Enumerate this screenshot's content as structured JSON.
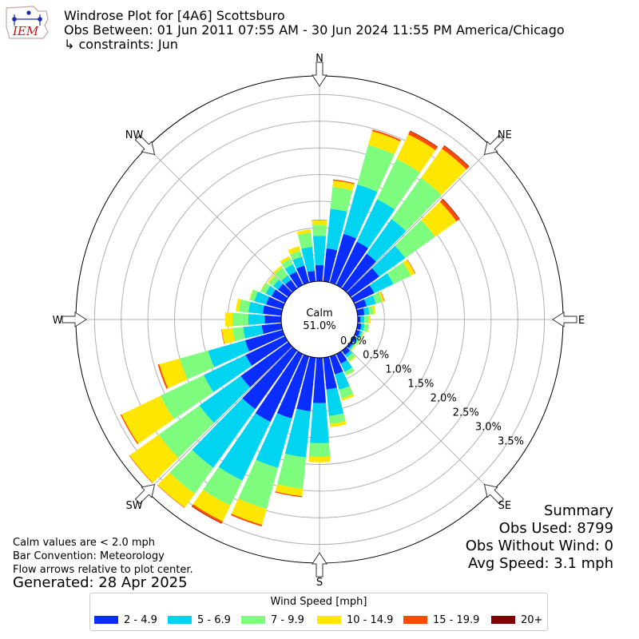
{
  "header": {
    "title": "Windrose Plot for [4A6] Scottsburo",
    "subtitle": "Obs Between: 01 Jun 2011 07:55 AM - 30 Jun 2024 11:55 PM America/Chicago",
    "constraints": "↳ constraints: Jun",
    "logo_text": "IEM"
  },
  "notes": {
    "calm_def": "Calm values are < 2.0 mph",
    "bar_convention": "Bar Convention: Meteorology",
    "flow_arrows": "Flow arrows relative to plot center.",
    "generated": "Generated: 28 Apr 2025"
  },
  "summary": {
    "title": "Summary",
    "obs_used": "Obs Used: 8799",
    "obs_without_wind": "Obs Without Wind: 0",
    "avg_speed": "Avg Speed: 3.1 mph"
  },
  "legend": {
    "title": "Wind Speed [mph]",
    "items": [
      {
        "label": "2 - 4.9",
        "color": "#0a2dff"
      },
      {
        "label": "5 - 6.9",
        "color": "#00d4f0"
      },
      {
        "label": "7 - 9.9",
        "color": "#7dfc7d"
      },
      {
        "label": "10 - 14.9",
        "color": "#ffe600"
      },
      {
        "label": "15 - 19.9",
        "color": "#ff4a00"
      },
      {
        "label": "20+",
        "color": "#800000"
      }
    ]
  },
  "chart_data": {
    "type": "windrose",
    "calm_label": "Calm",
    "calm_value": "51.0%",
    "direction_labels": [
      "N",
      "NE",
      "E",
      "SE",
      "S",
      "SW",
      "W",
      "NW"
    ],
    "radial_ticks": [
      0.0,
      0.5,
      1.0,
      1.5,
      2.0,
      2.5,
      3.0,
      3.5
    ],
    "radial_tick_labels": [
      "0.0%",
      "0.5%",
      "1.0%",
      "1.5%",
      "2.0%",
      "2.5%",
      "3.0%",
      "3.5%"
    ],
    "rmax_pct": 3.85,
    "bin_width_deg": 10,
    "speed_bins": [
      "2 - 4.9",
      "5 - 6.9",
      "7 - 9.9",
      "10 - 14.9",
      "15 - 19.9",
      "20+"
    ],
    "directions_deg": [
      0,
      10,
      20,
      30,
      40,
      50,
      60,
      70,
      80,
      90,
      100,
      110,
      120,
      130,
      140,
      150,
      160,
      170,
      180,
      190,
      200,
      210,
      220,
      230,
      240,
      250,
      260,
      270,
      280,
      290,
      300,
      310,
      320,
      330,
      340,
      350
    ],
    "cumulative_pct": [
      [
        0.3,
        0.85,
        1.05,
        1.14,
        1.15,
        1.15
      ],
      [
        0.62,
        1.37,
        1.78,
        1.9,
        1.92,
        1.92
      ],
      [
        0.95,
        1.91,
        2.68,
        2.95,
        2.98,
        2.98
      ],
      [
        0.9,
        1.78,
        2.62,
        3.13,
        3.2,
        3.21
      ],
      [
        0.8,
        1.6,
        2.55,
        3.22,
        3.29,
        3.3
      ],
      [
        0.66,
        1.26,
        1.95,
        2.44,
        2.51,
        2.52
      ],
      [
        0.42,
        0.82,
        1.18,
        1.27,
        1.28,
        1.28
      ],
      [
        0.2,
        0.38,
        0.5,
        0.54,
        0.55,
        0.55
      ],
      [
        0.13,
        0.22,
        0.3,
        0.34,
        0.34,
        0.34
      ],
      [
        0.05,
        0.12,
        0.2,
        0.24,
        0.24,
        0.24
      ],
      [
        0.07,
        0.13,
        0.21,
        0.22,
        0.22,
        0.22
      ],
      [
        0.07,
        0.11,
        0.14,
        0.15,
        0.15,
        0.15
      ],
      [
        0.05,
        0.09,
        0.13,
        0.14,
        0.14,
        0.14
      ],
      [
        0.05,
        0.08,
        0.11,
        0.12,
        0.12,
        0.12
      ],
      [
        0.1,
        0.16,
        0.24,
        0.26,
        0.26,
        0.26
      ],
      [
        0.2,
        0.37,
        0.44,
        0.45,
        0.45,
        0.45
      ],
      [
        0.35,
        0.65,
        0.82,
        0.86,
        0.86,
        0.86
      ],
      [
        0.6,
        1.1,
        1.25,
        1.31,
        1.31,
        1.31
      ],
      [
        0.85,
        1.6,
        1.86,
        1.96,
        1.96,
        1.96
      ],
      [
        1.01,
        1.88,
        2.47,
        2.61,
        2.63,
        2.63
      ],
      [
        1.21,
        2.17,
        2.97,
        3.28,
        3.31,
        3.31
      ],
      [
        1.41,
        2.63,
        3.15,
        3.48,
        3.52,
        3.53
      ],
      [
        1.35,
        2.7,
        3.3,
        3.62,
        3.63,
        3.63
      ],
      [
        1.1,
        2.05,
        2.99,
        3.66,
        3.67,
        3.67
      ],
      [
        0.82,
        1.69,
        2.59,
        3.4,
        3.42,
        3.42
      ],
      [
        0.73,
        1.45,
        2.0,
        2.4,
        2.43,
        2.43
      ],
      [
        0.37,
        0.72,
        0.92,
        1.12,
        1.13,
        1.13
      ],
      [
        0.31,
        0.62,
        0.91,
        1.05,
        1.05,
        1.05
      ],
      [
        0.35,
        0.62,
        0.8,
        0.86,
        0.86,
        0.86
      ],
      [
        0.32,
        0.55,
        0.64,
        0.65,
        0.65,
        0.65
      ],
      [
        0.28,
        0.4,
        0.5,
        0.51,
        0.51,
        0.51
      ],
      [
        0.24,
        0.35,
        0.45,
        0.48,
        0.48,
        0.48
      ],
      [
        0.2,
        0.3,
        0.48,
        0.52,
        0.52,
        0.52
      ],
      [
        0.28,
        0.43,
        0.55,
        0.6,
        0.6,
        0.6
      ],
      [
        0.33,
        0.5,
        0.62,
        0.71,
        0.71,
        0.71
      ],
      [
        0.2,
        0.65,
        0.92,
        0.98,
        0.98,
        0.98
      ]
    ],
    "grid": true
  }
}
